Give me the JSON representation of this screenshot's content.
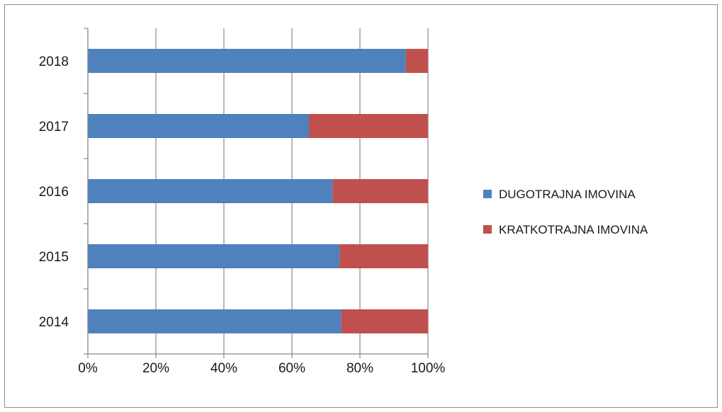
{
  "chart_data": {
    "type": "bar",
    "orientation": "horizontal",
    "stacking": "percent",
    "categories": [
      "2014",
      "2015",
      "2016",
      "2017",
      "2018"
    ],
    "series": [
      {
        "name": "DUGOTRAJNA IMOVINA",
        "color": "#4f81bd",
        "values": [
          74.5,
          74,
          72,
          65,
          93.5
        ]
      },
      {
        "name": "KRATKOTRAJNA IMOVINA",
        "color": "#c0504d",
        "values": [
          25.5,
          26,
          28,
          35,
          6.5
        ]
      }
    ],
    "x_ticks": [
      "0%",
      "20%",
      "40%",
      "60%",
      "80%",
      "100%"
    ],
    "xlim": [
      0,
      100
    ],
    "grid": "vertical",
    "legend_position": "right"
  }
}
